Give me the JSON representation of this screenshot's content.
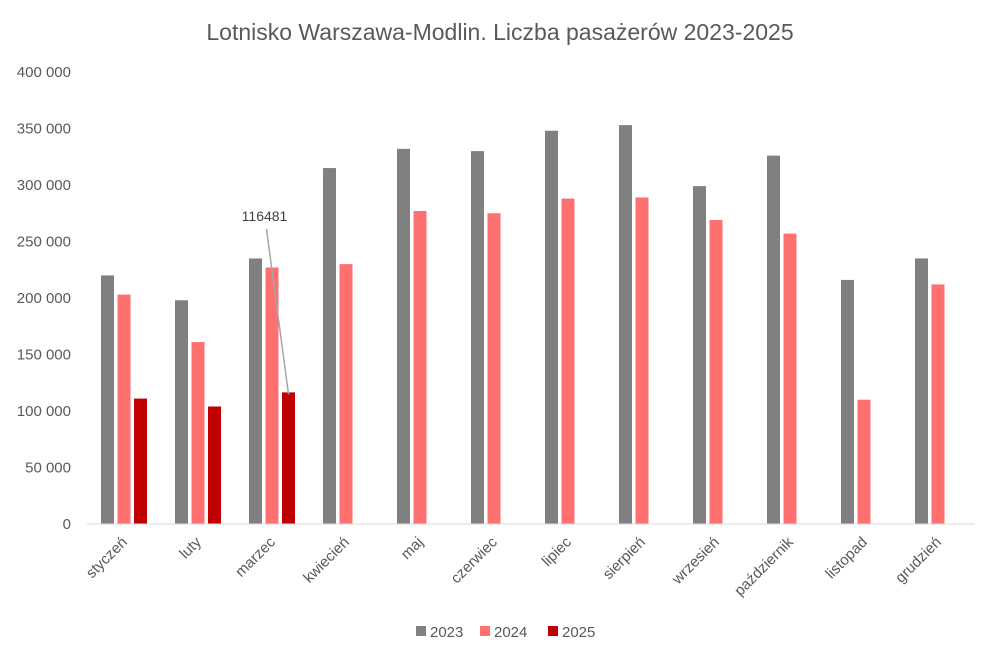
{
  "chart_data": {
    "type": "bar",
    "title": "Lotnisko Warszawa-Modlin. Liczba pasażerów 2023-2025",
    "xlabel": "",
    "ylabel": "",
    "ylim": [
      0,
      400000
    ],
    "yticks": [
      0,
      50000,
      100000,
      150000,
      200000,
      250000,
      300000,
      350000,
      400000
    ],
    "ytick_labels": [
      "0",
      "50 000",
      "100 000",
      "150 000",
      "200 000",
      "250 000",
      "300 000",
      "350 000",
      "400 000"
    ],
    "categories": [
      "styczeń",
      "luty",
      "marzec",
      "kwiecień",
      "maj",
      "czerwiec",
      "lipiec",
      "sierpień",
      "wrzesień",
      "październik",
      "listopad",
      "grudzień"
    ],
    "series": [
      {
        "name": "2023",
        "color": "#808080",
        "values": [
          220000,
          198000,
          235000,
          315000,
          332000,
          330000,
          348000,
          353000,
          299000,
          326000,
          216000,
          235000
        ]
      },
      {
        "name": "2024",
        "color": "#ff7070",
        "values": [
          203000,
          161000,
          227000,
          230000,
          277000,
          275000,
          288000,
          289000,
          269000,
          257000,
          110000,
          212000
        ]
      },
      {
        "name": "2025",
        "color": "#c00000",
        "values": [
          111000,
          104000,
          116481,
          null,
          null,
          null,
          null,
          null,
          null,
          null,
          null,
          null
        ]
      }
    ],
    "annotations": [
      {
        "text": "116481",
        "series": "2025",
        "category": "marzec"
      }
    ],
    "grid": false,
    "legend_position": "bottom"
  }
}
